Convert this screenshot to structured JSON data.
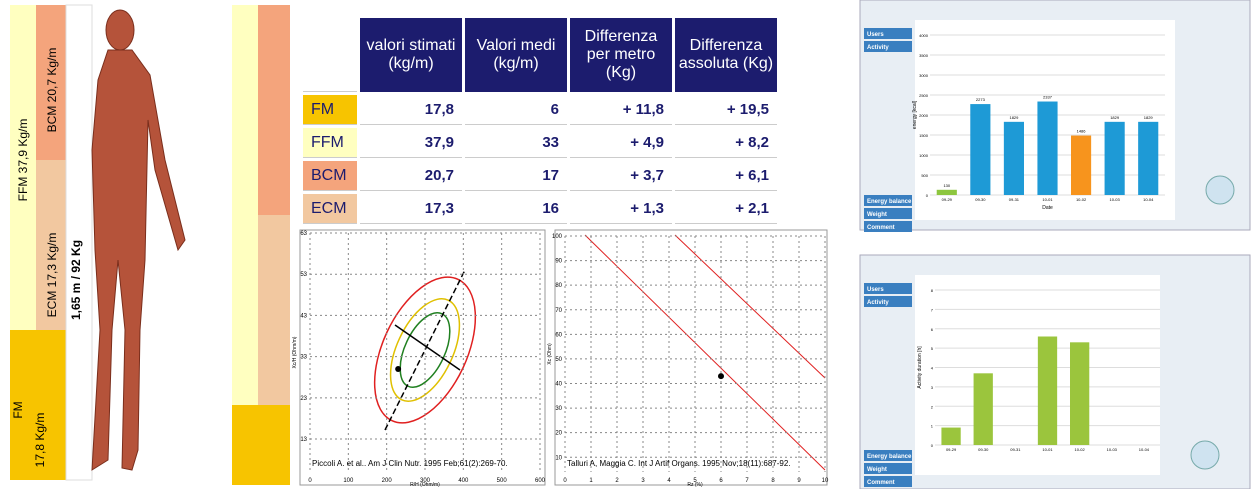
{
  "body_bar": {
    "ffm": "FFM 37,9 Kg/m",
    "fm": "FM",
    "fm_value": "17,8 Kg/m",
    "bcm": "BCM 20,7 Kg/m",
    "ecm": "ECM 17,3 Kg/m",
    "height_weight": "1,65 m / 92 Kg"
  },
  "table": {
    "headers": [
      "valori stimati (kg/m)",
      "Valori medi (kg/m)",
      "Differenza per metro (Kg)",
      "Differenza assoluta (Kg)"
    ],
    "rows": [
      [
        "FM",
        "17,8",
        "6",
        "+ 11,8",
        "+ 19,5"
      ],
      [
        "FFM",
        "37,9",
        "33",
        "+ 4,9",
        "+ 8,2"
      ],
      [
        "BCM",
        "20,7",
        "17",
        "+ 3,7",
        "+ 6,1"
      ],
      [
        "ECM",
        "17,3",
        "16",
        "+ 1,3",
        "+ 2,1"
      ]
    ]
  },
  "plot_left": {
    "xlabel": "R/H (Ohm/m)",
    "ylabel": "Xc/H (Ohm/m)",
    "citation": "Piccoli A. et al.. Am J Clin Nutr. 1995 Feb;61(2):269-70.",
    "xlim": [
      0,
      600
    ],
    "ylim": [
      5,
      63
    ],
    "xticks": [
      0,
      100,
      200,
      300,
      400,
      500,
      600
    ],
    "yticks": [
      13,
      23,
      33,
      43,
      53,
      63
    ],
    "point": [
      230,
      30
    ]
  },
  "plot_right": {
    "xlabel": "Rz (%)",
    "ylabel": "Xc (Ohm)",
    "citation": "Talluri A, Maggia C. Int J Artif Organs. 1995 Nov;18(11):687-92.",
    "xlim": [
      0,
      10
    ],
    "ylim": [
      4,
      100
    ],
    "xticks": [
      0,
      1,
      2,
      3,
      4,
      5,
      6,
      7,
      8,
      9,
      10
    ],
    "yticks": [
      10,
      20,
      30,
      40,
      50,
      60,
      70,
      80,
      90,
      100
    ],
    "point": [
      6,
      43
    ]
  },
  "screen_energy": {
    "menu": [
      "Users",
      "Activity",
      "Energy balance",
      "Weight",
      "Comment"
    ],
    "ylabel": "energy [kcal]",
    "xlabel": "Date",
    "ylim": [
      0,
      4000
    ],
    "yticks": [
      0,
      500,
      1000,
      1500,
      2000,
      2500,
      3000,
      3500,
      4000
    ],
    "categories": [
      "09-29",
      "09-30",
      "09-31",
      "10-01",
      "10-02",
      "10-03",
      "10-04"
    ],
    "values": [
      130,
      2273,
      1829,
      2337,
      1486,
      1829,
      1829
    ],
    "colors": [
      "#8dc63f",
      "#1e9ad6",
      "#1e9ad6",
      "#1e9ad6",
      "#f7941d",
      "#1e9ad6",
      "#1e9ad6"
    ]
  },
  "screen_activity": {
    "menu": [
      "Users",
      "Activity",
      "Energy balance",
      "Weight",
      "Comment"
    ],
    "ylabel": "Activity duration [h]",
    "ylim": [
      0,
      8
    ],
    "yticks": [
      0,
      1,
      2,
      3,
      4,
      5,
      6,
      7,
      8
    ],
    "categories": [
      "09-29",
      "09-30",
      "09-31",
      "10-01",
      "10-02",
      "10-03",
      "10-04"
    ],
    "values": [
      0.9,
      3.7,
      0,
      5.6,
      5.3,
      0,
      0
    ]
  }
}
